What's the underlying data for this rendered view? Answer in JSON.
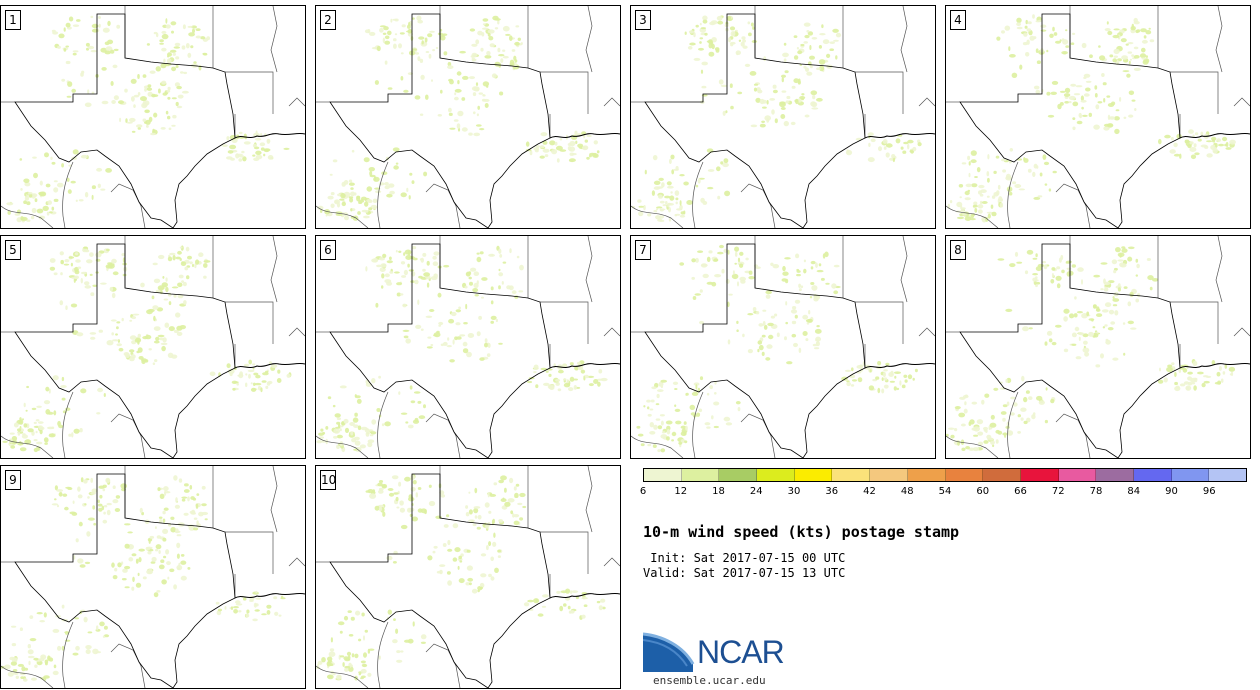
{
  "panels": [
    {
      "label": "1"
    },
    {
      "label": "2"
    },
    {
      "label": "3"
    },
    {
      "label": "4"
    },
    {
      "label": "5"
    },
    {
      "label": "6"
    },
    {
      "label": "7"
    },
    {
      "label": "8"
    },
    {
      "label": "9"
    },
    {
      "label": "10"
    }
  ],
  "colorbar": {
    "colors": [
      "#eef5d2",
      "#ddf0a0",
      "#a8cc64",
      "#dcec1e",
      "#fbec00",
      "#fae27a",
      "#f4c87e",
      "#eea04a",
      "#e8823e",
      "#d06c3c",
      "#e8143c",
      "#e85aa0",
      "#9c6ca0",
      "#6468f0",
      "#8096f0",
      "#b4c4f4"
    ],
    "ticks": [
      "6",
      "12",
      "18",
      "24",
      "30",
      "36",
      "42",
      "48",
      "54",
      "60",
      "66",
      "72",
      "78",
      "84",
      "90",
      "96"
    ]
  },
  "title": "10-m wind speed (kts) postage stamp",
  "init": " Init: Sat 2017-07-15 00 UTC",
  "valid": "Valid: Sat 2017-07-15 13 UTC",
  "logo": {
    "name": "NCAR",
    "url": "ensemble.ucar.edu"
  }
}
